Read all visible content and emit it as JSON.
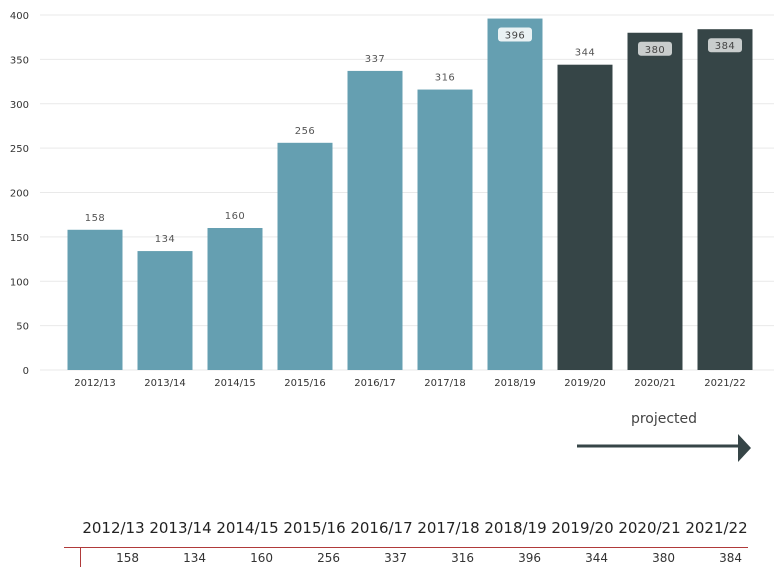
{
  "chart_data": {
    "type": "bar",
    "categories": [
      "2012/13",
      "2013/14",
      "2014/15",
      "2015/16",
      "2016/17",
      "2017/18",
      "2018/19",
      "2019/20",
      "2020/21",
      "2021/22"
    ],
    "values": [
      158,
      134,
      160,
      256,
      337,
      316,
      396,
      344,
      380,
      384
    ],
    "projected_from_index": 7,
    "ylim": [
      0,
      400
    ],
    "yticks": [
      0,
      50,
      100,
      150,
      200,
      250,
      300,
      350,
      400
    ],
    "grid": true,
    "legend": "none",
    "title": "",
    "xlabel": "",
    "ylabel": "",
    "colors": {
      "actual": "#659fb1",
      "projected": "#364547",
      "grid": "#e9e9e9",
      "arrow": "#364547",
      "table_rule": "#b03a3a"
    },
    "annotation": "projected"
  },
  "table": {
    "headers": [
      "2012/13",
      "2013/14",
      "2014/15",
      "2015/16",
      "2016/17",
      "2017/18",
      "2018/19",
      "2019/20",
      "2020/21",
      "2021/22"
    ],
    "values": [
      "158",
      "134",
      "160",
      "256",
      "337",
      "316",
      "396",
      "344",
      "380",
      "384"
    ]
  }
}
